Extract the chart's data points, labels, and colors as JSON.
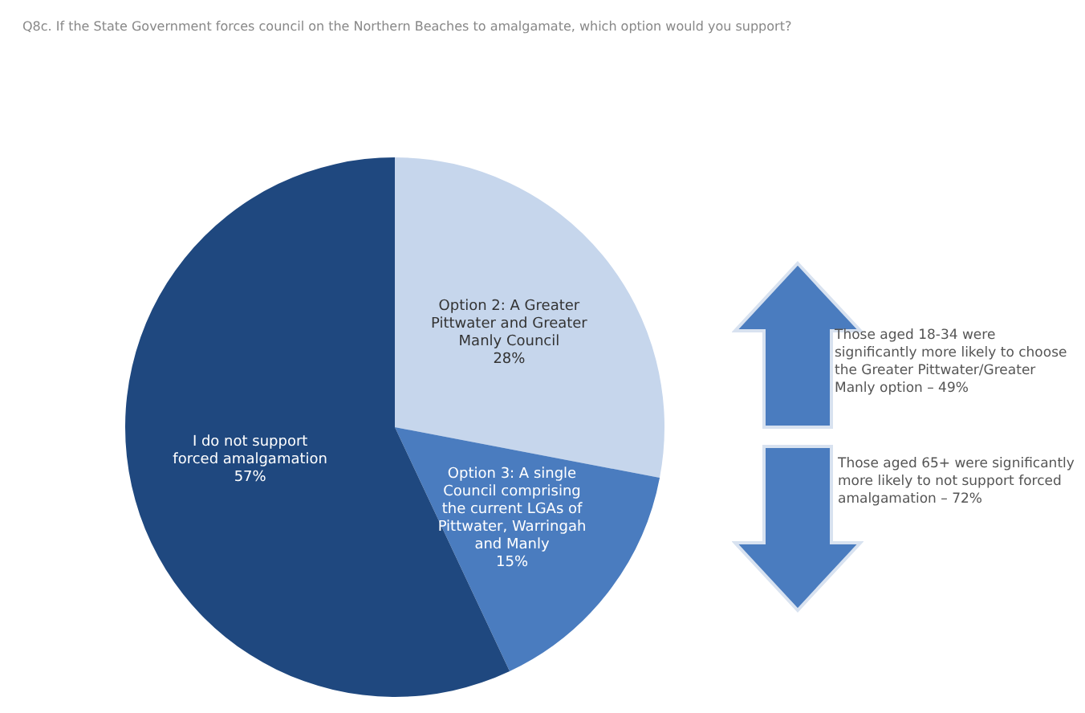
{
  "chart_data": {
    "type": "pie",
    "title": "Q8c. If the State Government forces council on the Northern Beaches to amalgamate, which option would you support?",
    "categories": [
      "Option 2: A Greater Pittwater and Greater Manly Council",
      "Option 3: A single Council comprising the current LGAs of Pittwater, Warringah and Manly",
      "I do not support forced amalgamation"
    ],
    "values": [
      28,
      15,
      57
    ],
    "colors": [
      "#c6d6ec",
      "#4a7cbf",
      "#1f487f"
    ],
    "value_labels": [
      "28%",
      "15%",
      "57%"
    ],
    "annotations": [
      "Those aged 18-34 were significantly more likely to choose the Greater Pittwater/Greater Manly option – 49%",
      "Those aged 65+ were significantly more likely to not support forced amalgamation – 72%"
    ]
  }
}
